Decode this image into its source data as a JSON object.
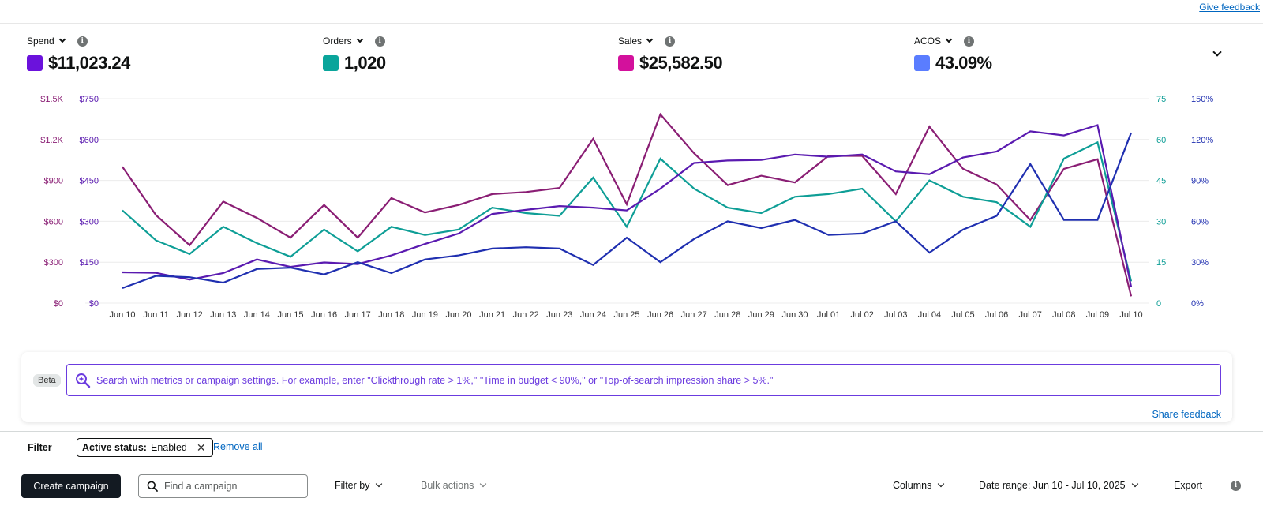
{
  "header": {
    "give_feedback": "Give feedback"
  },
  "metrics": [
    {
      "label": "Spend",
      "value": "$11,023.24",
      "color": "#6b12dc"
    },
    {
      "label": "Orders",
      "value": "1,020",
      "color": "#0aa59b"
    },
    {
      "label": "Sales",
      "value": "$25,582.50",
      "color": "#d3119c"
    },
    {
      "label": "ACOS",
      "value": "43.09%",
      "color": "#5a7dff"
    }
  ],
  "chart_data": {
    "type": "line",
    "categories": [
      "Jun 10",
      "Jun 11",
      "Jun 12",
      "Jun 13",
      "Jun 14",
      "Jun 15",
      "Jun 16",
      "Jun 17",
      "Jun 18",
      "Jun 19",
      "Jun 20",
      "Jun 21",
      "Jun 22",
      "Jun 23",
      "Jun 24",
      "Jun 25",
      "Jun 26",
      "Jun 27",
      "Jun 28",
      "Jun 29",
      "Jun 30",
      "Jul 01",
      "Jul 02",
      "Jul 03",
      "Jul 04",
      "Jul 05",
      "Jul 06",
      "Jul 07",
      "Jul 08",
      "Jul 09",
      "Jul 10"
    ],
    "axes": {
      "sales_ticks": [
        "$0",
        "$300",
        "$600",
        "$900",
        "$1.2K",
        "$1.5K"
      ],
      "spend_ticks": [
        "$0",
        "$150",
        "$300",
        "$450",
        "$600",
        "$750"
      ],
      "orders_ticks": [
        "0",
        "15",
        "30",
        "45",
        "60",
        "75"
      ],
      "acos_ticks": [
        "0%",
        "30%",
        "60%",
        "90%",
        "120%",
        "150%"
      ],
      "sales_range": [
        0,
        1500
      ],
      "spend_range": [
        0,
        750
      ],
      "orders_range": [
        0,
        75
      ],
      "acos_range": [
        0,
        150
      ]
    },
    "grid": true,
    "series": [
      {
        "key": "sales",
        "color": "#8a1e74",
        "axis": "sales_range",
        "values": [
          1000,
          645,
          425,
          745,
          625,
          480,
          720,
          480,
          770,
          665,
          720,
          800,
          815,
          845,
          1205,
          725,
          1385,
          1100,
          865,
          935,
          885,
          1080,
          1080,
          800,
          1295,
          985,
          870,
          610,
          985,
          1055,
          50
        ]
      },
      {
        "key": "orders",
        "color": "#0e9e96",
        "axis": "orders_range",
        "values": [
          34,
          23,
          18,
          28,
          22,
          17,
          27,
          19,
          28,
          25,
          27,
          35,
          33,
          32,
          46,
          28,
          53,
          42,
          35,
          33,
          39,
          40,
          42,
          30,
          45,
          39,
          37,
          28,
          53,
          59,
          8
        ]
      },
      {
        "key": "spend",
        "color": "#5a1ab0",
        "axis": "spend_range",
        "values": [
          113,
          111,
          86,
          110,
          160,
          133,
          149,
          143,
          175,
          217,
          255,
          327,
          342,
          356,
          350,
          340,
          420,
          514,
          523,
          525,
          545,
          537,
          545,
          483,
          473,
          534,
          556,
          630,
          615,
          653,
          60
        ]
      },
      {
        "key": "acos",
        "color": "#1f2fb0",
        "axis": "acos_range",
        "values": [
          11,
          20,
          19,
          15,
          25,
          26,
          21,
          30,
          22,
          32,
          35,
          40,
          41,
          40,
          28,
          48,
          30,
          47,
          60,
          55,
          61,
          50,
          51,
          60,
          37,
          54,
          64,
          102,
          61,
          61,
          125
        ]
      }
    ]
  },
  "ai_search": {
    "badge": "Beta",
    "placeholder": "Search with metrics or campaign settings. For example, enter \"Clickthrough rate > 1%,\" \"Time in budget < 90%,\" or \"Top-of-search impression share > 5%.\"",
    "share_feedback": "Share feedback"
  },
  "filter": {
    "label": "Filter",
    "chip_key": "Active status:",
    "chip_value": "Enabled",
    "remove_all": "Remove all"
  },
  "toolbar": {
    "create_campaign": "Create campaign",
    "find_placeholder": "Find a campaign",
    "filter_by": "Filter by",
    "bulk_actions": "Bulk actions",
    "columns": "Columns",
    "date_range": "Date range: Jun 10 - Jul 10, 2025",
    "export": "Export"
  }
}
